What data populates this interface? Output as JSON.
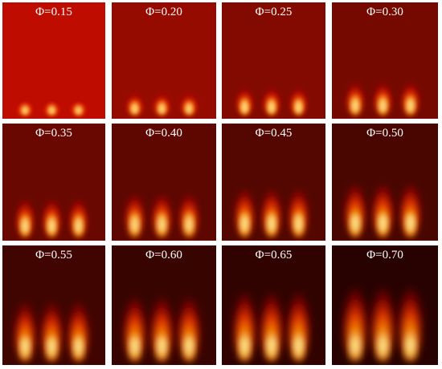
{
  "figure": {
    "panels": [
      {
        "label": "Φ=0.15",
        "phi": 0.15
      },
      {
        "label": "Φ=0.20",
        "phi": 0.2
      },
      {
        "label": "Φ=0.25",
        "phi": 0.25
      },
      {
        "label": "Φ=0.30",
        "phi": 0.3
      },
      {
        "label": "Φ=0.35",
        "phi": 0.35
      },
      {
        "label": "Φ=0.40",
        "phi": 0.4
      },
      {
        "label": "Φ=0.45",
        "phi": 0.45
      },
      {
        "label": "Φ=0.50",
        "phi": 0.5
      },
      {
        "label": "Φ=0.55",
        "phi": 0.55
      },
      {
        "label": "Φ=0.60",
        "phi": 0.6
      },
      {
        "label": "Φ=0.65",
        "phi": 0.65
      },
      {
        "label": "Φ=0.70",
        "phi": 0.7
      }
    ],
    "colors": {
      "label_text": "#ffffff",
      "flame_core": "#fff6a0",
      "flame_mid": "#ff3c00",
      "flame_outer": "#c80000"
    }
  }
}
